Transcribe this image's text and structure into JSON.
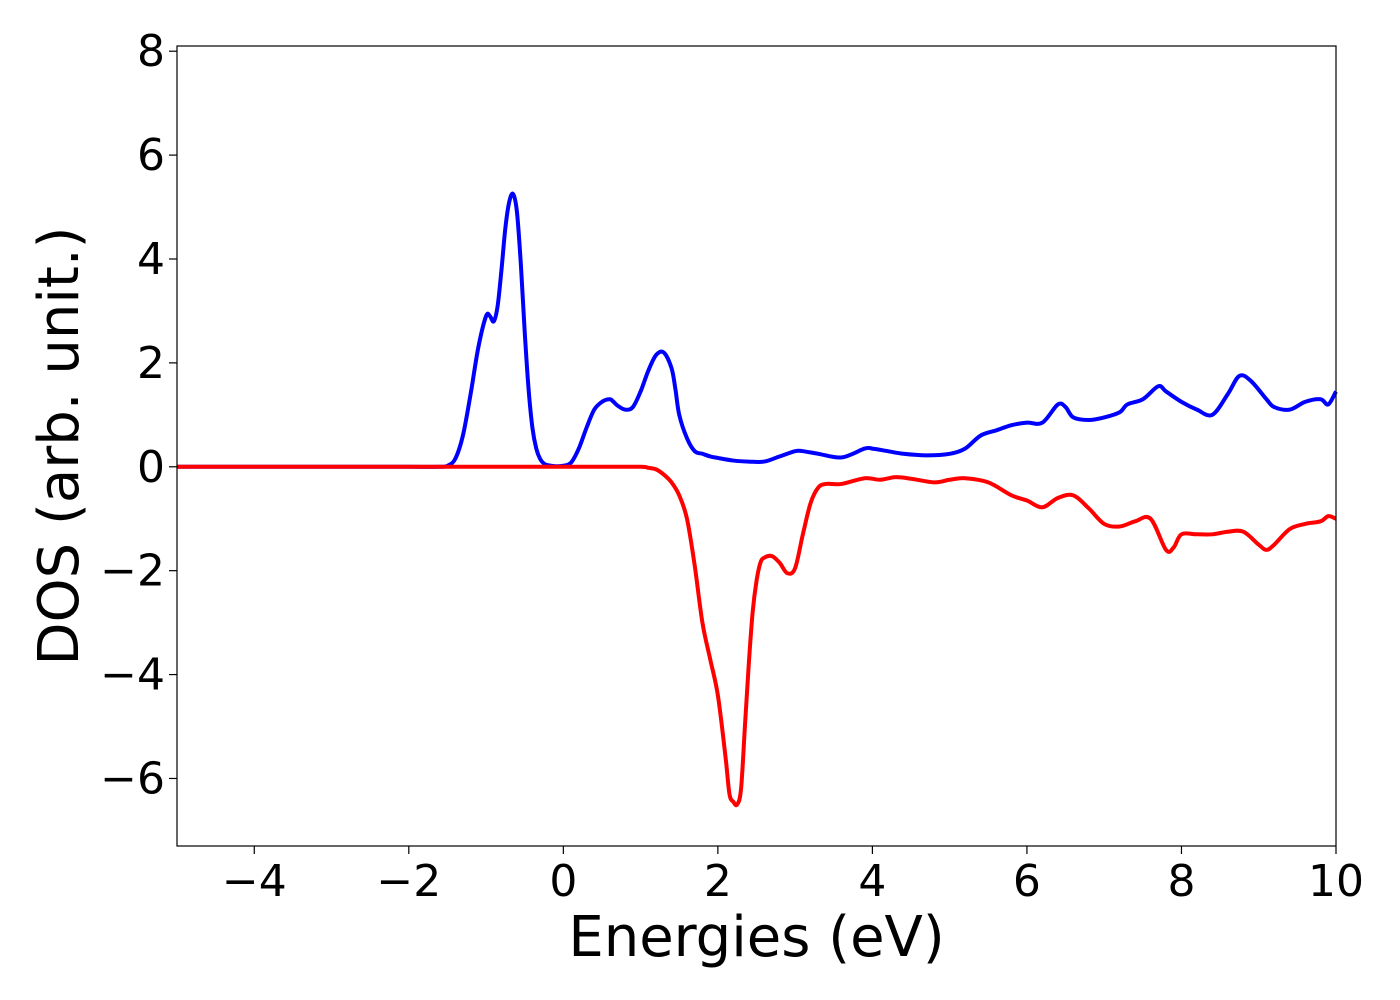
{
  "chart_data": {
    "type": "line",
    "title": "",
    "xlabel": "Energies (eV)",
    "ylabel": "DOS (arb. unit.)",
    "xlim": [
      -5,
      10
    ],
    "ylim": [
      -7.3,
      8.1
    ],
    "xticks": [
      -4,
      -2,
      0,
      2,
      4,
      6,
      8,
      10
    ],
    "xtick_labels": [
      "−4",
      "−2",
      "0",
      "2",
      "4",
      "6",
      "8",
      "10"
    ],
    "yticks": [
      -6,
      -4,
      -2,
      0,
      2,
      4,
      6,
      8
    ],
    "ytick_labels": [
      "−6",
      "−4",
      "−2",
      "0",
      "2",
      "4",
      "6",
      "8"
    ],
    "grid": false,
    "legend": "none",
    "series": [
      {
        "color": "#0000ff",
        "x": [
          -5,
          -4,
          -3,
          -2,
          -1.6,
          -1.5,
          -1.4,
          -1.3,
          -1.2,
          -1.1,
          -1.0,
          -0.95,
          -0.9,
          -0.85,
          -0.8,
          -0.75,
          -0.7,
          -0.65,
          -0.6,
          -0.55,
          -0.5,
          -0.45,
          -0.4,
          -0.35,
          -0.3,
          -0.25,
          -0.2,
          -0.1,
          0.0,
          0.1,
          0.2,
          0.3,
          0.4,
          0.5,
          0.6,
          0.65,
          0.7,
          0.8,
          0.9,
          1.0,
          1.1,
          1.2,
          1.3,
          1.4,
          1.45,
          1.5,
          1.6,
          1.7,
          1.8,
          1.9,
          2.0,
          2.2,
          2.4,
          2.6,
          2.8,
          3.0,
          3.1,
          3.3,
          3.6,
          3.9,
          4.0,
          4.2,
          4.4,
          4.7,
          5.0,
          5.2,
          5.4,
          5.6,
          5.8,
          6.0,
          6.2,
          6.4,
          6.5,
          6.6,
          6.8,
          7.0,
          7.2,
          7.3,
          7.5,
          7.7,
          7.8,
          8.0,
          8.2,
          8.4,
          8.6,
          8.75,
          8.9,
          9.1,
          9.2,
          9.4,
          9.6,
          9.8,
          9.9,
          10.0
        ],
        "y": [
          0,
          0,
          0,
          0,
          0,
          0.02,
          0.15,
          0.6,
          1.4,
          2.3,
          2.9,
          2.9,
          2.8,
          3.1,
          3.8,
          4.6,
          5.1,
          5.25,
          4.9,
          3.9,
          2.6,
          1.5,
          0.75,
          0.35,
          0.15,
          0.06,
          0.03,
          0.01,
          0.02,
          0.08,
          0.35,
          0.75,
          1.1,
          1.25,
          1.3,
          1.25,
          1.18,
          1.1,
          1.15,
          1.45,
          1.85,
          2.15,
          2.2,
          1.9,
          1.5,
          1.0,
          0.55,
          0.3,
          0.25,
          0.2,
          0.17,
          0.12,
          0.1,
          0.1,
          0.2,
          0.3,
          0.3,
          0.25,
          0.18,
          0.35,
          0.35,
          0.3,
          0.25,
          0.22,
          0.25,
          0.35,
          0.6,
          0.7,
          0.8,
          0.85,
          0.85,
          1.2,
          1.15,
          0.95,
          0.9,
          0.95,
          1.05,
          1.2,
          1.3,
          1.55,
          1.45,
          1.25,
          1.1,
          1.0,
          1.4,
          1.75,
          1.65,
          1.3,
          1.15,
          1.1,
          1.25,
          1.3,
          1.2,
          1.45
        ]
      },
      {
        "color": "#ff0000",
        "x": [
          -5,
          -4,
          -3,
          -2,
          -1,
          0,
          0.5,
          1.0,
          1.1,
          1.2,
          1.3,
          1.4,
          1.5,
          1.6,
          1.7,
          1.8,
          1.9,
          2.0,
          2.1,
          2.15,
          2.2,
          2.25,
          2.3,
          2.35,
          2.4,
          2.45,
          2.5,
          2.55,
          2.6,
          2.7,
          2.8,
          2.9,
          3.0,
          3.1,
          3.2,
          3.3,
          3.4,
          3.6,
          3.9,
          4.1,
          4.3,
          4.5,
          4.8,
          5.0,
          5.2,
          5.5,
          5.8,
          6.0,
          6.2,
          6.4,
          6.6,
          6.8,
          7.0,
          7.2,
          7.4,
          7.6,
          7.8,
          7.9,
          8.0,
          8.2,
          8.4,
          8.6,
          8.8,
          9.0,
          9.1,
          9.2,
          9.4,
          9.6,
          9.8,
          9.9,
          10.0
        ],
        "y": [
          0,
          0,
          0,
          0,
          0,
          0,
          0,
          0,
          -0.02,
          -0.05,
          -0.15,
          -0.3,
          -0.55,
          -1.0,
          -1.9,
          -3.0,
          -3.7,
          -4.4,
          -5.6,
          -6.3,
          -6.45,
          -6.5,
          -6.2,
          -5.0,
          -3.8,
          -2.8,
          -2.2,
          -1.85,
          -1.75,
          -1.72,
          -1.85,
          -2.05,
          -1.95,
          -1.3,
          -0.7,
          -0.4,
          -0.33,
          -0.33,
          -0.22,
          -0.25,
          -0.2,
          -0.23,
          -0.3,
          -0.25,
          -0.22,
          -0.3,
          -0.55,
          -0.65,
          -0.78,
          -0.6,
          -0.55,
          -0.8,
          -1.1,
          -1.15,
          -1.05,
          -1.0,
          -1.6,
          -1.55,
          -1.3,
          -1.3,
          -1.3,
          -1.25,
          -1.25,
          -1.5,
          -1.6,
          -1.5,
          -1.2,
          -1.1,
          -1.05,
          -0.95,
          -1.0
        ]
      }
    ]
  }
}
